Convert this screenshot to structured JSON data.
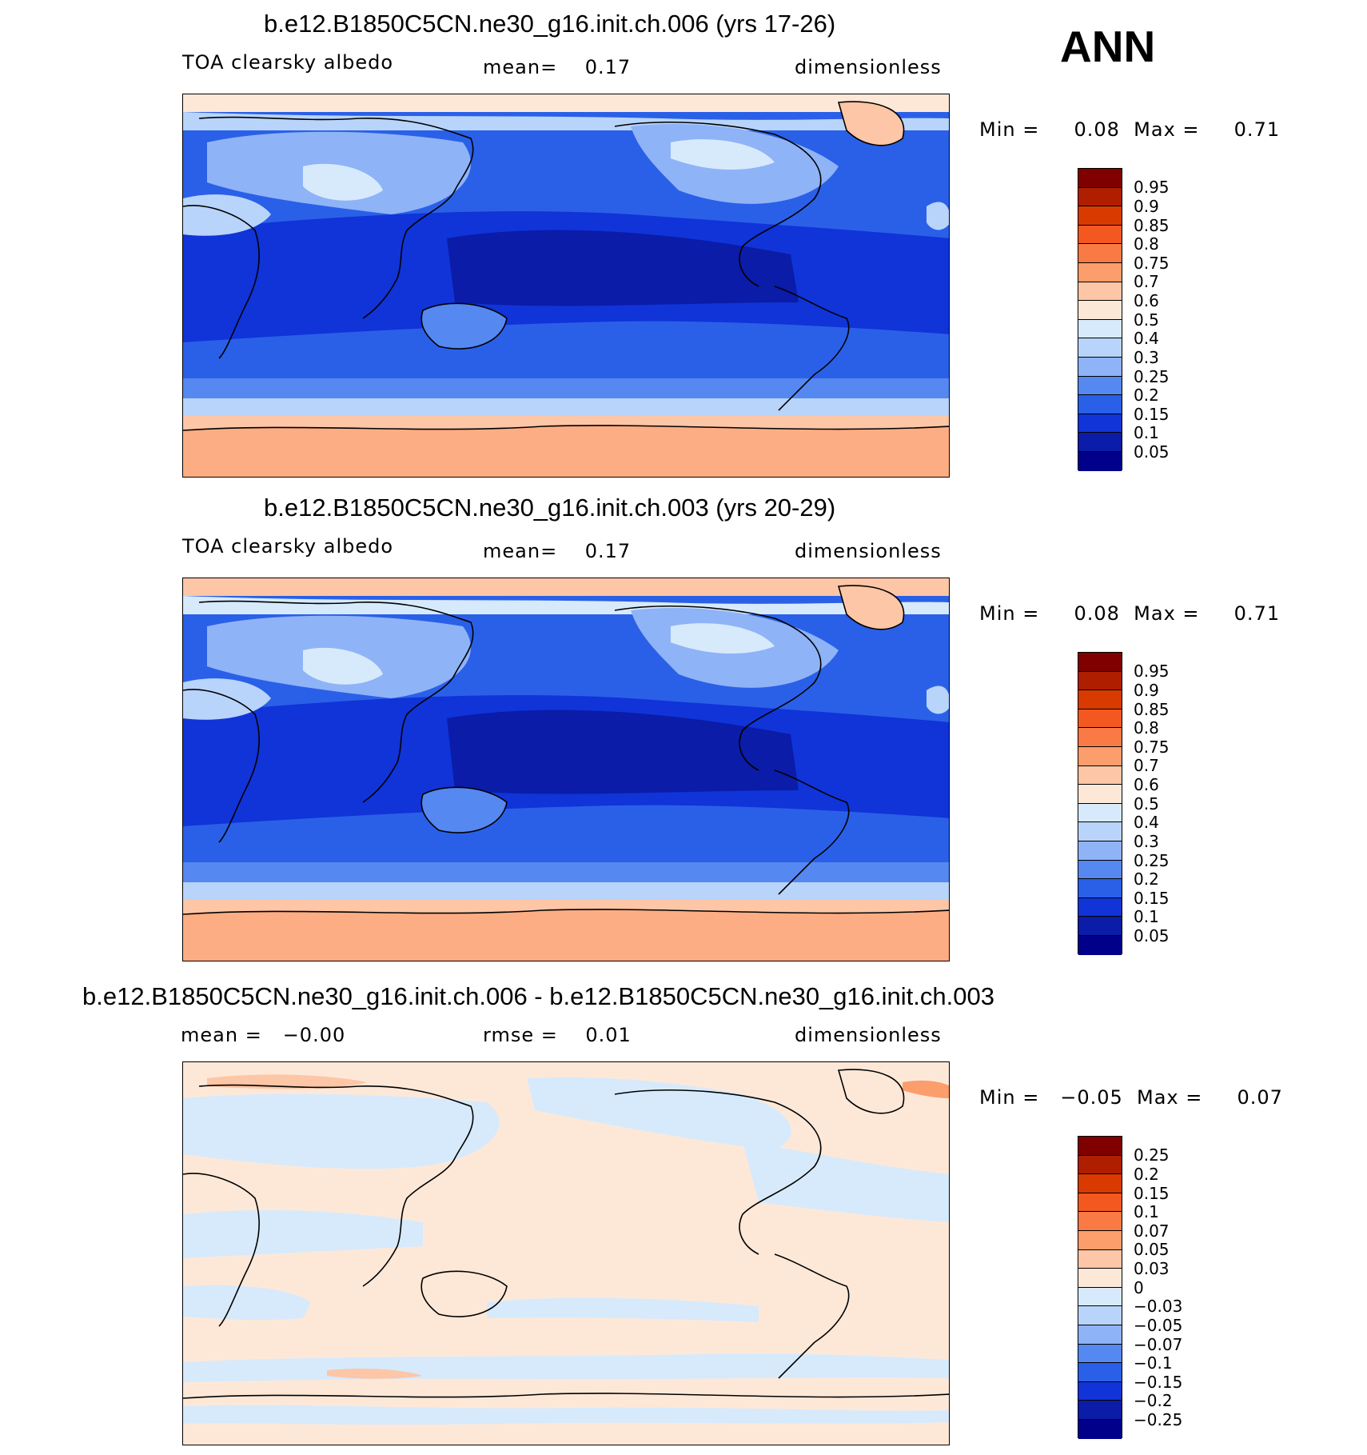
{
  "season": "ANN",
  "panels": [
    {
      "title": "b.e12.B1850C5CN.ne30_g16.init.ch.006 (yrs 17-26)",
      "left_label": "TOA clearsky albedo",
      "center_label": "mean=    0.17",
      "right_label": "dimensionless",
      "minmax": "Min =     0.08  Max =     0.71",
      "colorbar_labels": [
        "0.95",
        "0.9",
        "0.85",
        "0.8",
        "0.75",
        "0.7",
        "0.6",
        "0.5",
        "0.4",
        "0.3",
        "0.25",
        "0.2",
        "0.15",
        "0.1",
        "0.05"
      ]
    },
    {
      "title": "b.e12.B1850C5CN.ne30_g16.init.ch.003 (yrs 20-29)",
      "left_label": "TOA clearsky albedo",
      "center_label": "mean=    0.17",
      "right_label": "dimensionless",
      "minmax": "Min =     0.08  Max =     0.71",
      "colorbar_labels": [
        "0.95",
        "0.9",
        "0.85",
        "0.8",
        "0.75",
        "0.7",
        "0.6",
        "0.5",
        "0.4",
        "0.3",
        "0.25",
        "0.2",
        "0.15",
        "0.1",
        "0.05"
      ]
    },
    {
      "title": "b.e12.B1850C5CN.ne30_g16.init.ch.006 - b.e12.B1850C5CN.ne30_g16.init.ch.003",
      "left_label": "mean =   −0.00",
      "center_label": "rmse =    0.01",
      "right_label": "dimensionless",
      "minmax": "Min =   −0.05  Max =     0.07",
      "colorbar_labels": [
        "0.25",
        "0.2",
        "0.15",
        "0.1",
        "0.07",
        "0.05",
        "0.03",
        "0",
        "−0.03",
        "−0.05",
        "−0.07",
        "−0.1",
        "−0.15",
        "−0.2",
        "−0.25"
      ]
    }
  ],
  "colors": {
    "colorbar_top_to_bottom": [
      "#800000",
      "#b01e00",
      "#d93a00",
      "#f2581f",
      "#fa7a45",
      "#fc9d6c",
      "#fdc6a6",
      "#fde8d8",
      "#d7eafc",
      "#b8d4fa",
      "#8fb3f7",
      "#5588f0",
      "#2a60e8",
      "#1034d8",
      "#0a1ca8",
      "#00008a"
    ]
  },
  "chart_data": [
    {
      "type": "heatmap",
      "title": "b.e12.B1850C5CN.ne30_g16.init.ch.006 (yrs 17-26)",
      "variable": "TOA clearsky albedo",
      "units": "dimensionless",
      "mean": 0.17,
      "min": 0.08,
      "max": 0.71,
      "contour_levels": [
        0.05,
        0.1,
        0.15,
        0.2,
        0.25,
        0.3,
        0.4,
        0.5,
        0.6,
        0.7,
        0.75,
        0.8,
        0.85,
        0.9,
        0.95
      ]
    },
    {
      "type": "heatmap",
      "title": "b.e12.B1850C5CN.ne30_g16.init.ch.003 (yrs 20-29)",
      "variable": "TOA clearsky albedo",
      "units": "dimensionless",
      "mean": 0.17,
      "min": 0.08,
      "max": 0.71,
      "contour_levels": [
        0.05,
        0.1,
        0.15,
        0.2,
        0.25,
        0.3,
        0.4,
        0.5,
        0.6,
        0.7,
        0.75,
        0.8,
        0.85,
        0.9,
        0.95
      ]
    },
    {
      "type": "heatmap",
      "title": "b.e12.B1850C5CN.ne30_g16.init.ch.006 - b.e12.B1850C5CN.ne30_g16.init.ch.003",
      "units": "dimensionless",
      "mean": -0.0,
      "rmse": 0.01,
      "min": -0.05,
      "max": 0.07,
      "contour_levels": [
        -0.25,
        -0.2,
        -0.15,
        -0.1,
        -0.07,
        -0.05,
        -0.03,
        0,
        0.03,
        0.05,
        0.07,
        0.1,
        0.15,
        0.2,
        0.25
      ]
    }
  ]
}
